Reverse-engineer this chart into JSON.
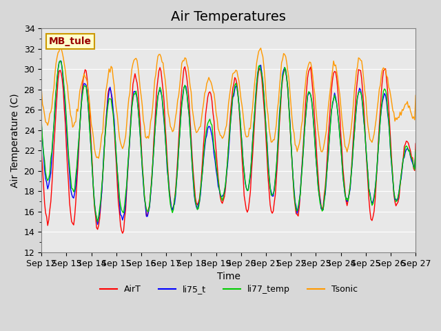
{
  "title": "Air Temperatures",
  "ylabel": "Air Temperature (C)",
  "xlabel": "Time",
  "annotation": "MB_tule",
  "ylim": [
    12,
    34
  ],
  "yticks": [
    12,
    14,
    16,
    18,
    20,
    22,
    24,
    26,
    28,
    30,
    32,
    34
  ],
  "x_labels": [
    "Sep 12",
    "Sep 13",
    "Sep 14",
    "Sep 15",
    "Sep 16",
    "Sep 17",
    "Sep 18",
    "Sep 19",
    "Sep 20",
    "Sep 21",
    "Sep 22",
    "Sep 23",
    "Sep 24",
    "Sep 25",
    "Sep 26",
    "Sep 27"
  ],
  "legend_labels": [
    "AirT",
    "li75_t",
    "li77_temp",
    "Tsonic"
  ],
  "legend_colors": [
    "#ff0000",
    "#0000ff",
    "#00cc00",
    "#ff9900"
  ],
  "plot_bg_color": "#e8e8e8",
  "fig_bg_color": "#d8d8d8",
  "title_fontsize": 14,
  "axis_label_fontsize": 10,
  "tick_fontsize": 9,
  "annotation_bg": "#ffffcc",
  "annotation_border": "#cc9900",
  "annotation_text_color": "#990000",
  "n_days": 16
}
